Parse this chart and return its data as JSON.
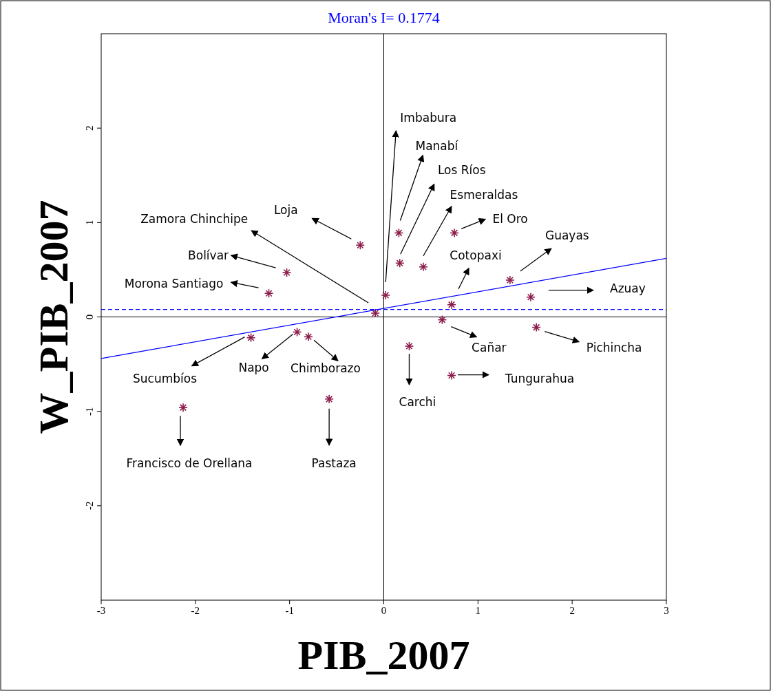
{
  "chart_data": {
    "type": "scatter",
    "title": "Moran's I= 0.1774",
    "xlabel": "PIB_2007",
    "ylabel": "W_PIB_2007",
    "xlim": [
      -3,
      3
    ],
    "ylim": [
      -3,
      3
    ],
    "xticks": [
      -3,
      -2,
      -1,
      0,
      1,
      2,
      3
    ],
    "yticks": [
      -2,
      -1,
      0,
      1,
      2
    ],
    "grid": false,
    "series": [
      {
        "marker": "cross",
        "color": "#8b1a4a",
        "x": [
          0.02,
          0.16,
          0.17,
          0.42,
          0.75,
          0.72,
          1.34,
          1.56,
          1.62,
          0.62,
          0.27,
          0.72,
          -0.58,
          -2.13,
          -1.41,
          -0.92,
          -0.8,
          -1.22,
          -1.03,
          -0.09,
          -0.25
        ],
        "values": [
          0.23,
          0.89,
          0.57,
          0.53,
          0.89,
          0.13,
          0.39,
          0.21,
          -0.11,
          -0.03,
          -0.31,
          -0.62,
          -0.87,
          -0.96,
          -0.22,
          -0.16,
          -0.21,
          0.25,
          0.47,
          0.04,
          0.76
        ]
      },
      {
        "type": "line",
        "color": "#0000ff",
        "x": [
          -3,
          3
        ],
        "values": [
          -0.44,
          0.62
        ]
      }
    ],
    "ref_lines": [
      {
        "axis": "y",
        "value": 0,
        "color": "#000000",
        "line_style": "solid"
      },
      {
        "axis": "x",
        "value": 0,
        "color": "#000000",
        "line_style": "solid"
      },
      {
        "axis": "y",
        "value": 0.08,
        "color": "#0000ff",
        "line_style": "dashed"
      }
    ],
    "annotations": [
      "Imbabura",
      "Manabí",
      "Los Ríos",
      "Esmeraldas",
      "El Oro",
      "Cotopaxi",
      "Guayas",
      "Azuay",
      "Pichincha",
      "Cañar",
      "Carchi",
      "Tungurahua",
      "Pastaza",
      "Francisco de  Orellana",
      "Sucumbíos",
      "Napo",
      "Chimborazo",
      "Morona Santiago",
      "Bolívar",
      "Zamora Chinchipe",
      "Loja"
    ]
  }
}
